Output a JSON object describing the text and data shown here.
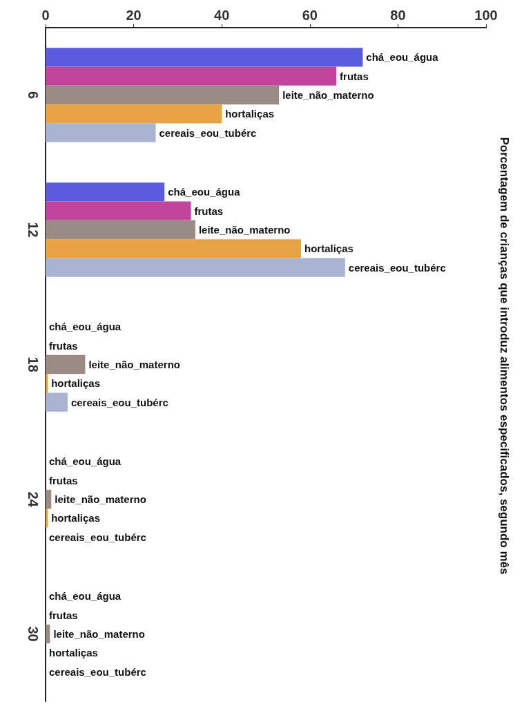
{
  "chart_data": {
    "type": "bar",
    "orientation": "horizontal",
    "ylabel": "Porcentagem de crianças que introduz alimentos especificados, segundo mês",
    "categories": [
      "6",
      "12",
      "18",
      "24",
      "30"
    ],
    "xlim": [
      0,
      100
    ],
    "xticks": [
      0,
      20,
      40,
      60,
      80,
      100
    ],
    "series": [
      {
        "name": "chá_eou_água",
        "color": "#5b5be0",
        "values": [
          72,
          27,
          0,
          0,
          0
        ]
      },
      {
        "name": "frutas",
        "color": "#c2449c",
        "values": [
          66,
          33,
          0,
          0,
          0
        ]
      },
      {
        "name": "leite_não_materno",
        "color": "#9a8c84",
        "values": [
          53,
          34,
          9,
          1.3,
          1
        ]
      },
      {
        "name": "hortaliças",
        "color": "#e8a444",
        "values": [
          40,
          58,
          0.5,
          0.5,
          0
        ]
      },
      {
        "name": "cereais_eou_tubérc",
        "color": "#aab4d0",
        "values": [
          25,
          68,
          5,
          0,
          0
        ]
      }
    ]
  }
}
